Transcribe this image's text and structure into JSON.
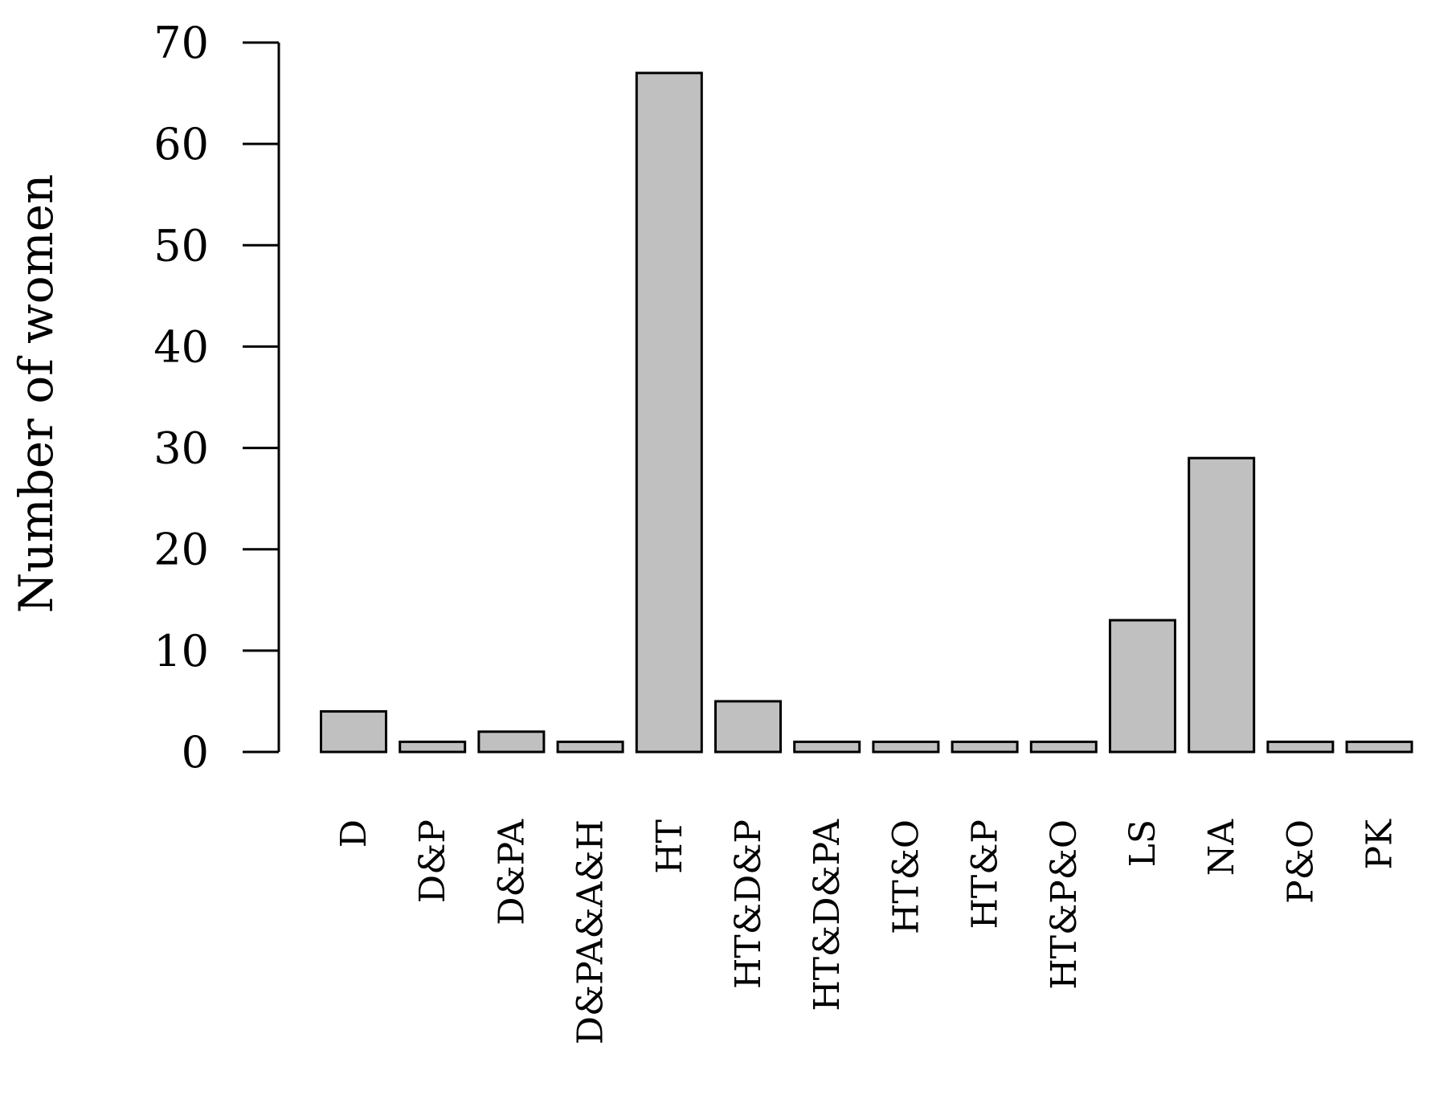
{
  "chart_data": {
    "type": "bar",
    "title": "",
    "xlabel": "",
    "ylabel": "Number of women",
    "ylim": [
      0,
      70
    ],
    "yticks": [
      0,
      10,
      20,
      30,
      40,
      50,
      60,
      70
    ],
    "categories": [
      "D",
      "D&P",
      "D&PA",
      "D&PA&A&H",
      "HT",
      "HT&D&P",
      "HT&D&PA",
      "HT&O",
      "HT&P",
      "HT&P&O",
      "LS",
      "NA",
      "P&O",
      "PK"
    ],
    "values": [
      4,
      1,
      2,
      1,
      67,
      5,
      1,
      1,
      1,
      1,
      13,
      29,
      1,
      1
    ],
    "grid": false,
    "legend": "none",
    "colors": {
      "bar_fill": "#c0c0c0",
      "bar_stroke": "#000000",
      "axis": "#000000",
      "background": "#ffffff"
    }
  }
}
